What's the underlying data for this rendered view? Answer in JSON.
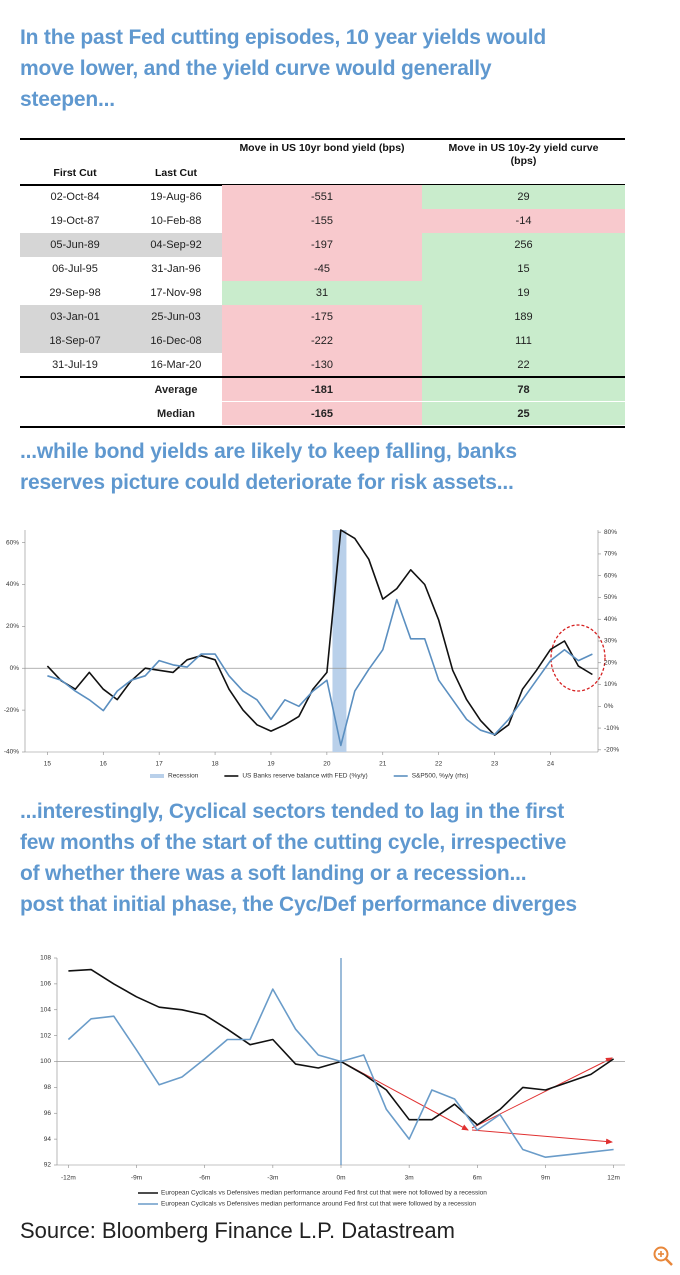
{
  "headings": [
    [
      "In the past Fed cutting episodes, 10 year yields would",
      "move lower, and the yield curve would generally",
      "steepen..."
    ],
    [
      "...while bond yields are likely to keep falling, banks",
      "reserves picture could deteriorate for risk assets..."
    ],
    [
      "...interestingly, Cyclical sectors tended to lag in the first",
      "few months of the start of the cutting cycle, irrespective",
      "of whether there was a soft landing or a recession...",
      "post that initial phase, the Cyc/Def performance diverges"
    ]
  ],
  "table": {
    "columns": [
      "First Cut",
      "Last Cut",
      "Move in US 10yr bond yield (bps)",
      "Move in US 10y-2y yield curve (bps)"
    ],
    "rows": [
      [
        "02-Oct-84",
        "19-Aug-86",
        -551,
        29
      ],
      [
        "19-Oct-87",
        "10-Feb-88",
        -155,
        -14
      ],
      [
        "05-Jun-89",
        "04-Sep-92",
        -197,
        256
      ],
      [
        "06-Jul-95",
        "31-Jan-96",
        -45,
        15
      ],
      [
        "29-Sep-98",
        "17-Nov-98",
        31,
        19
      ],
      [
        "03-Jan-01",
        "25-Jun-03",
        -175,
        189
      ],
      [
        "18-Sep-07",
        "16-Dec-08",
        -222,
        111
      ],
      [
        "31-Jul-19",
        "16-Mar-20",
        -130,
        22
      ]
    ],
    "summary": [
      [
        "Average",
        -181,
        78
      ],
      [
        "Median",
        -165,
        25
      ]
    ],
    "shaded": [
      2,
      5,
      6
    ],
    "negative_color": "#f8c9cd",
    "positive_color": "#c9eccc",
    "shade_color": "#d6d6d6"
  },
  "chart_data": [
    {
      "type": "line",
      "x": [
        2015,
        2015.25,
        2015.5,
        2015.75,
        2016,
        2016.25,
        2016.5,
        2016.75,
        2017,
        2017.25,
        2017.5,
        2017.75,
        2018,
        2018.25,
        2018.5,
        2018.75,
        2019,
        2019.25,
        2019.5,
        2019.75,
        2020,
        2020.25,
        2020.5,
        2020.75,
        2021,
        2021.25,
        2021.5,
        2021.75,
        2022,
        2022.25,
        2022.5,
        2022.75,
        2023,
        2023.25,
        2023.5,
        2023.75,
        2024,
        2024.25,
        2024.5,
        2024.75
      ],
      "shaded": {
        "name": "Recession",
        "color": "#b9d0ea",
        "x": [
          2020.1,
          2020.35
        ]
      },
      "series": [
        {
          "name": "US Banks reserve balance with FED (%y/y)",
          "color": "#111111",
          "values": [
            1,
            -6,
            -10,
            -2,
            -10,
            -15,
            -6,
            0,
            -1,
            -2,
            4,
            6,
            4,
            -10,
            -20,
            -27,
            -30,
            -27,
            -23,
            -10,
            -2,
            66,
            62,
            52,
            33,
            38,
            47,
            40,
            23,
            -1,
            -15,
            -25,
            -32,
            -27,
            -10,
            -1,
            9,
            13,
            1,
            -3
          ]
        },
        {
          "name": "S&P500, %y/y (rhs)",
          "color": "#5b8fc0",
          "axis": "y2",
          "values": [
            14,
            12,
            7,
            3,
            -2,
            7,
            12,
            14,
            21,
            19,
            18,
            24,
            24,
            14,
            7,
            3,
            -6,
            3,
            0,
            7,
            12,
            -18,
            7,
            17,
            26,
            49,
            31,
            31,
            12,
            3,
            -6,
            -11,
            -13,
            -6,
            3,
            12,
            21,
            26,
            21,
            24
          ]
        }
      ],
      "xlim": [
        2014.6,
        2024.85
      ],
      "xticks": [
        {
          "value": 2015,
          "label": "15"
        },
        {
          "value": 2016,
          "label": "16"
        },
        {
          "value": 2017,
          "label": "17"
        },
        {
          "value": 2018,
          "label": "18"
        },
        {
          "value": 2019,
          "label": "19"
        },
        {
          "value": 2020,
          "label": "20"
        },
        {
          "value": 2021,
          "label": "21"
        },
        {
          "value": 2022,
          "label": "22"
        },
        {
          "value": 2023,
          "label": "23"
        },
        {
          "value": 2024,
          "label": "24"
        }
      ],
      "ylim": [
        -40,
        66
      ],
      "yticks": [
        {
          "value": -40,
          "label": "-40%"
        },
        {
          "value": -20,
          "label": "-20%"
        },
        {
          "value": 0,
          "label": "0%"
        },
        {
          "value": 20,
          "label": "20%"
        },
        {
          "value": 40,
          "label": "40%"
        },
        {
          "value": 60,
          "label": "60%"
        }
      ],
      "y2lim": [
        -21,
        81
      ],
      "y2ticks": [
        {
          "value": -20,
          "label": "-20%"
        },
        {
          "value": -10,
          "label": "-10%"
        },
        {
          "value": 0,
          "label": "0%"
        },
        {
          "value": 10,
          "label": "10%"
        },
        {
          "value": 20,
          "label": "20%"
        },
        {
          "value": 30,
          "label": "30%"
        },
        {
          "value": 40,
          "label": "40%"
        },
        {
          "value": 50,
          "label": "50%"
        },
        {
          "value": 60,
          "label": "60%"
        },
        {
          "value": 70,
          "label": "70%"
        },
        {
          "value": 80,
          "label": "80%"
        }
      ],
      "hline": 0
    },
    {
      "type": "line",
      "x": [
        -12,
        -11,
        -10,
        -9,
        -8,
        -7,
        -6,
        -5,
        -4,
        -3,
        -2,
        -1,
        0,
        1,
        2,
        3,
        4,
        5,
        6,
        7,
        8,
        9,
        10,
        11,
        12
      ],
      "series": [
        {
          "name": "European Cyclicals vs Defensives median performance around Fed first cut that were not followed by a recession",
          "color": "#111111",
          "values": [
            107.0,
            107.1,
            106.0,
            105.0,
            104.2,
            104.0,
            103.6,
            102.5,
            101.3,
            101.7,
            99.8,
            99.5,
            100,
            99.0,
            97.8,
            95.5,
            95.5,
            96.7,
            95.1,
            96.3,
            98.0,
            97.8,
            98.4,
            99.0,
            100.2
          ]
        },
        {
          "name": "European Cyclicals vs Defensives median performance around Fed first cut that were followed by a recession",
          "color": "#6a9cc9",
          "values": [
            101.7,
            103.3,
            103.5,
            100.9,
            98.2,
            98.8,
            100.2,
            101.7,
            101.7,
            105.6,
            102.5,
            100.5,
            100,
            100.5,
            96.3,
            94.0,
            97.8,
            97.1,
            94.7,
            95.9,
            93.2,
            92.6,
            92.8,
            93.0,
            93.2
          ]
        }
      ],
      "xlim": [
        -12.5,
        12.5
      ],
      "xticks": [
        {
          "value": -12,
          "label": "-12m"
        },
        {
          "value": -9,
          "label": "-9m"
        },
        {
          "value": -6,
          "label": "-6m"
        },
        {
          "value": -3,
          "label": "-3m"
        },
        {
          "value": 0,
          "label": "0m"
        },
        {
          "value": 3,
          "label": "3m"
        },
        {
          "value": 6,
          "label": "6m"
        },
        {
          "value": 9,
          "label": "9m"
        },
        {
          "value": 12,
          "label": "12m"
        }
      ],
      "ylim": [
        92,
        108
      ],
      "yticks": [
        92,
        94,
        96,
        98,
        100,
        102,
        104,
        106,
        108
      ],
      "hline": 100,
      "vline": 0
    }
  ],
  "source": "Source: Bloomberg Finance L.P. Datastream"
}
